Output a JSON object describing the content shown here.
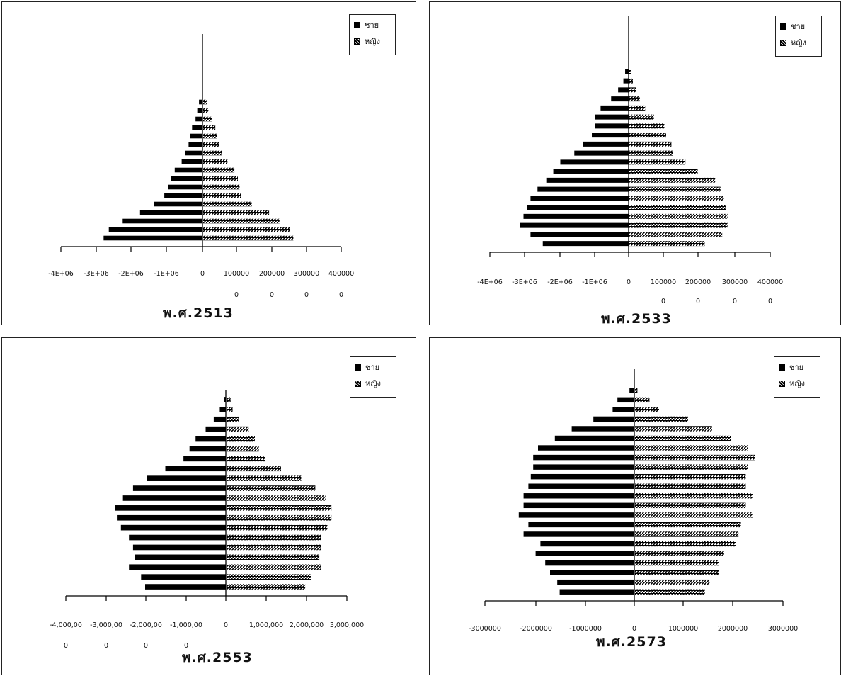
{
  "legend": {
    "male": "ชาย",
    "female": "หญิง"
  },
  "chart_data": [
    {
      "type": "bar",
      "title": "พ.ศ.2513",
      "series": [
        {
          "name": "ชาย"
        },
        {
          "name": "หญิง"
        }
      ],
      "male": [
        2.85,
        2.7,
        2.3,
        1.8,
        1.4,
        1.1,
        1.0,
        0.9,
        0.8,
        0.6,
        0.5,
        0.4,
        0.35,
        0.3,
        0.2,
        0.15,
        0.1
      ],
      "female": [
        2.6,
        2.5,
        2.2,
        1.9,
        1.4,
        1.1,
        1.05,
        1.0,
        0.9,
        0.7,
        0.55,
        0.45,
        0.4,
        0.35,
        0.25,
        0.15,
        0.1
      ],
      "xlim": [
        -4,
        4
      ],
      "tick_labels": [
        "-4E+06",
        "-3E+06",
        "-2E+06",
        "-1E+06",
        "0",
        "100000",
        "200000",
        "300000",
        "400000"
      ],
      "tick_labels_row2": [
        "0",
        "0",
        "0",
        "0"
      ]
    },
    {
      "type": "bar",
      "title": "พ.ศ.2533",
      "series": [
        {
          "name": "ชาย"
        },
        {
          "name": "หญิง"
        }
      ],
      "male": [
        2.45,
        2.8,
        3.1,
        3.0,
        2.9,
        2.8,
        2.6,
        2.35,
        2.15,
        1.95,
        1.55,
        1.3,
        1.05,
        0.95,
        0.95,
        0.8,
        0.5,
        0.3,
        0.15,
        0.1
      ],
      "female": [
        2.15,
        2.65,
        2.8,
        2.8,
        2.75,
        2.7,
        2.6,
        2.45,
        1.95,
        1.6,
        1.25,
        1.2,
        1.05,
        1.0,
        0.7,
        0.45,
        0.3,
        0.2,
        0.1,
        0.05
      ],
      "xlim": [
        -4,
        4
      ],
      "tick_labels": [
        "-4E+06",
        "-3E+06",
        "-2E+06",
        "-1E+06",
        "0",
        "100000",
        "200000",
        "300000",
        "400000"
      ],
      "tick_labels_row2": [
        "0",
        "0",
        "0",
        "0"
      ]
    },
    {
      "type": "bar",
      "title": "พ.ศ.2553",
      "series": [
        {
          "name": "ชาย"
        },
        {
          "name": "หญิง"
        }
      ],
      "male": [
        2.0,
        2.1,
        2.4,
        2.25,
        2.3,
        2.4,
        2.6,
        2.7,
        2.75,
        2.55,
        2.3,
        1.95,
        1.5,
        1.05,
        0.9,
        0.75,
        0.5,
        0.3,
        0.15,
        0.05
      ],
      "female": [
        1.95,
        2.1,
        2.35,
        2.3,
        2.35,
        2.35,
        2.5,
        2.6,
        2.6,
        2.45,
        2.2,
        1.85,
        1.35,
        0.95,
        0.8,
        0.7,
        0.55,
        0.3,
        0.15,
        0.1
      ],
      "xlim": [
        -4,
        3
      ],
      "tick_labels": [
        "-4,000,00",
        "-3,000,00",
        "-2,000,00",
        "-1,000,00",
        "0",
        "1,000,000",
        "2,000,000",
        "3,000,000"
      ],
      "tick_labels_row2": [
        "0",
        "0",
        "0",
        "0"
      ]
    },
    {
      "type": "bar",
      "title": "พ.ศ.2573",
      "series": [
        {
          "name": "ชาย"
        },
        {
          "name": "หญิง"
        }
      ],
      "male": [
        1.55,
        1.6,
        1.75,
        1.85,
        2.05,
        1.95,
        2.3,
        2.2,
        2.4,
        2.3,
        2.3,
        2.2,
        2.15,
        2.1,
        2.1,
        2.0,
        1.65,
        1.3,
        0.85,
        0.45,
        0.35,
        0.1
      ],
      "female": [
        1.45,
        1.55,
        1.75,
        1.75,
        1.85,
        2.1,
        2.15,
        2.2,
        2.45,
        2.3,
        2.45,
        2.3,
        2.3,
        2.35,
        2.5,
        2.35,
        2.0,
        1.6,
        1.1,
        0.5,
        0.3,
        0.05
      ],
      "xlim": [
        -3,
        3
      ],
      "tick_labels": [
        "-3000000",
        "-2000000",
        "-1000000",
        "0",
        "1000000",
        "2000000",
        "3000000"
      ],
      "tick_labels_row2": []
    }
  ]
}
